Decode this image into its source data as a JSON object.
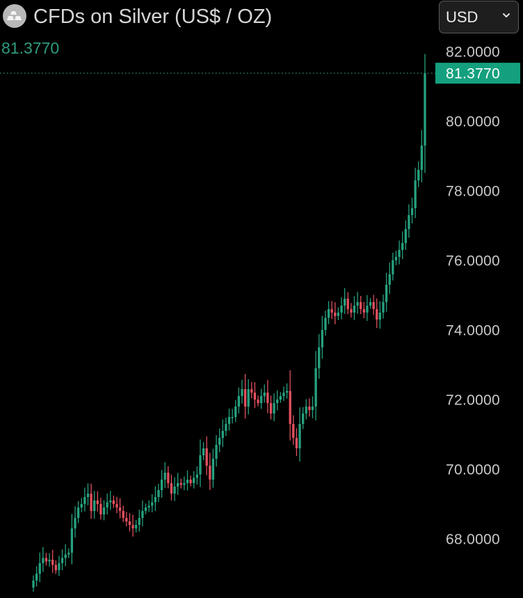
{
  "header": {
    "title": "CFDs on Silver (US$ / OZ)",
    "last_price": "81.3770",
    "icon": "silver-bars-icon"
  },
  "currency_select": {
    "value": "USD",
    "icon": "chevron-down-icon"
  },
  "colors": {
    "background": "#000000",
    "up": "#26a17f",
    "down": "#e2505e",
    "price_line": "#2e9b80",
    "axis_text": "#c9c9c9"
  },
  "chart_data": {
    "type": "candlestick",
    "title": "CFDs on Silver (US$ / OZ)",
    "y_axis_position": "right",
    "y_ticks": [
      {
        "value": 68,
        "label": "68.0000"
      },
      {
        "value": 70,
        "label": "70.0000"
      },
      {
        "value": 72,
        "label": "72.0000"
      },
      {
        "value": 74,
        "label": "74.0000"
      },
      {
        "value": 76,
        "label": "76.0000"
      },
      {
        "value": 78,
        "label": "78.0000"
      },
      {
        "value": 80,
        "label": "80.0000"
      },
      {
        "value": 82,
        "label": "82.0000"
      }
    ],
    "current_price": {
      "value": 81.377,
      "label": "81.3770"
    },
    "ylim": [
      66.4,
      82.6
    ],
    "grid": false,
    "closes": [
      66.8,
      67.0,
      67.3,
      67.45,
      67.35,
      67.4,
      67.25,
      67.1,
      67.3,
      67.45,
      67.55,
      67.6,
      68.3,
      68.6,
      68.9,
      69.0,
      69.2,
      69.3,
      68.8,
      69.1,
      69.0,
      68.7,
      68.9,
      69.05,
      69.1,
      69.0,
      68.9,
      68.8,
      68.6,
      68.5,
      68.4,
      68.3,
      68.4,
      68.6,
      68.8,
      68.9,
      68.95,
      69.05,
      69.2,
      69.4,
      69.7,
      69.9,
      69.6,
      69.3,
      69.5,
      69.6,
      69.55,
      69.6,
      69.7,
      69.6,
      69.75,
      69.85,
      70.4,
      70.6,
      70.1,
      69.7,
      70.3,
      70.7,
      70.9,
      71.1,
      71.3,
      71.5,
      71.5,
      71.8,
      72.1,
      72.3,
      71.8,
      72.3,
      72.2,
      72.0,
      71.9,
      72.1,
      72.2,
      71.9,
      71.6,
      71.9,
      72.0,
      72.1,
      72.2,
      72.25,
      71.3,
      70.9,
      70.6,
      71.3,
      71.6,
      71.8,
      71.7,
      71.8,
      72.9,
      73.5,
      74.0,
      74.35,
      74.6,
      74.5,
      74.4,
      74.5,
      74.7,
      74.9,
      74.6,
      74.5,
      74.7,
      74.8,
      74.6,
      74.5,
      74.7,
      74.8,
      74.6,
      74.3,
      74.5,
      74.8,
      75.3,
      75.6,
      76.0,
      76.1,
      76.3,
      76.5,
      76.9,
      77.3,
      77.5,
      78.3,
      78.6,
      79.3,
      81.377
    ]
  }
}
